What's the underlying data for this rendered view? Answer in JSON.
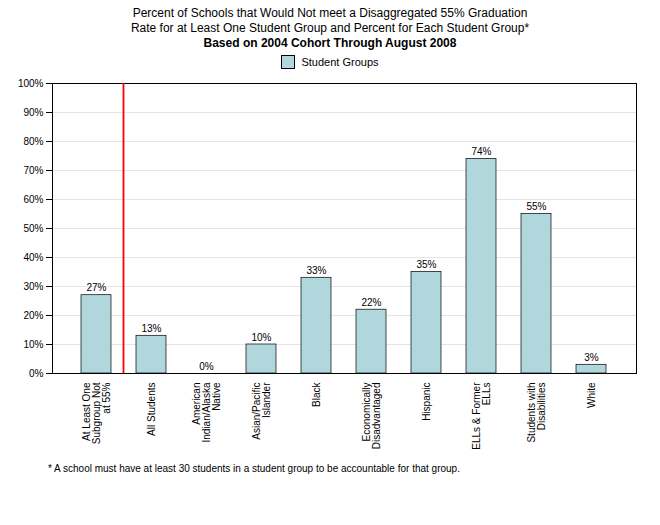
{
  "chart_data": {
    "type": "bar",
    "title": "Percent of Schools that Would Not meet a Disaggregated 55% Graduation\nRate for at Least One  Student Group and Percent for Each Student Group*",
    "subtitle": "Based on 2004 Cohort Through  August 2008",
    "caption": "* A school must have at least 30 students in a student group to be accountable for that group.",
    "categories": [
      "At Least One\nSubgroup Not\nat 55%",
      "All Students",
      "American\nIndian/Alaska\nNative",
      "Asian/Pacific\nIslander",
      "Black",
      "Economically\nDisadvantaged",
      "Hispanic",
      "ELLs & Former\nELLs",
      "Students with\nDisabilities",
      "White"
    ],
    "series": [
      {
        "name": "Student Groups",
        "color": "#b0d8dc",
        "values": [
          27,
          13,
          0,
          10,
          33,
          22,
          35,
          74,
          55,
          3
        ],
        "value_labels": [
          "27%",
          "13%",
          "0%",
          "10%",
          "33%",
          "22%",
          "35%",
          "74%",
          "55%",
          "3%"
        ]
      }
    ],
    "ylim": [
      0,
      100
    ],
    "yticks": [
      {
        "value": 0,
        "label": "0%"
      },
      {
        "value": 10,
        "label": "10%"
      },
      {
        "value": 20,
        "label": "20%"
      },
      {
        "value": 30,
        "label": "30%"
      },
      {
        "value": 40,
        "label": "40%"
      },
      {
        "value": 50,
        "label": "50%"
      },
      {
        "value": 60,
        "label": "60%"
      },
      {
        "value": 70,
        "label": "70%"
      },
      {
        "value": 80,
        "label": "80%"
      },
      {
        "value": 90,
        "label": "90%"
      },
      {
        "value": 100,
        "label": "100%"
      }
    ],
    "grid": true,
    "data_labels": true,
    "legend": "upper center"
  }
}
